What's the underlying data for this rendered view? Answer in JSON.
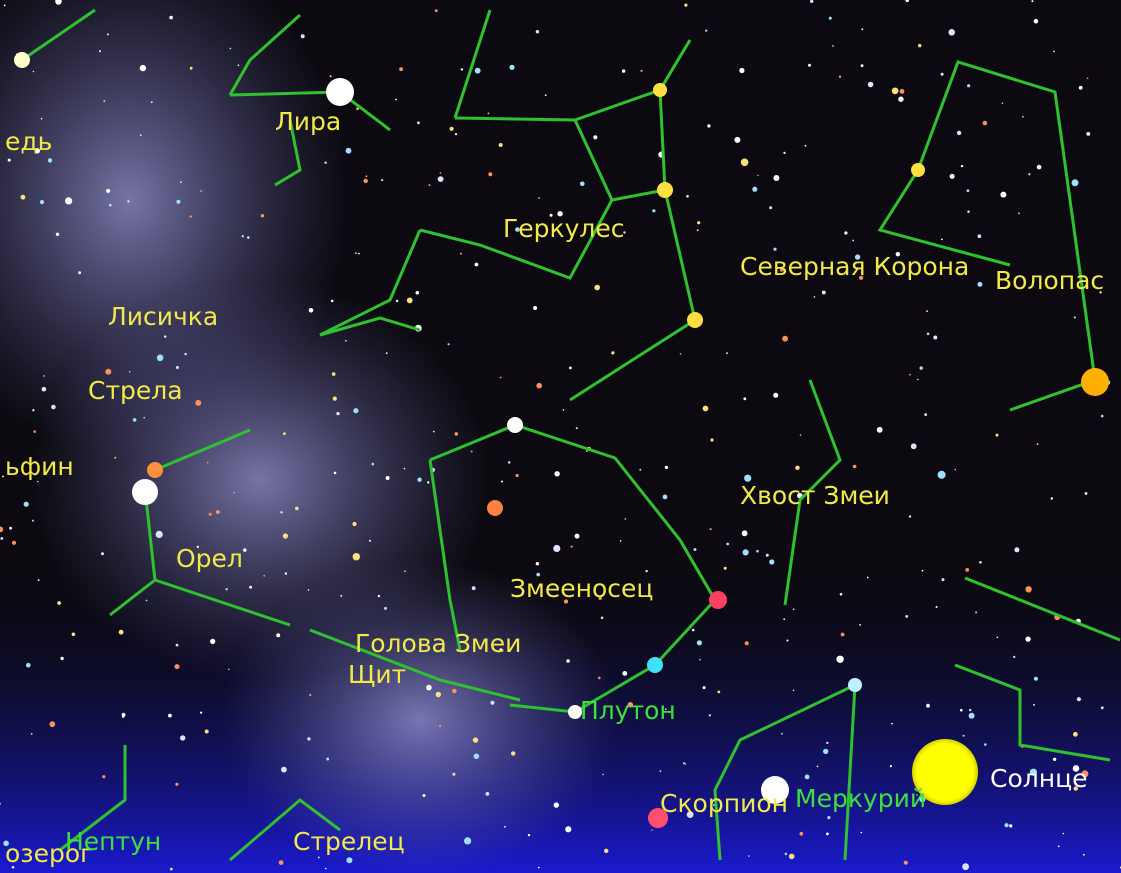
{
  "constellations": [
    "едь",
    "Лира",
    "Геркулес",
    "Северная Корона",
    "Волопас",
    "Лисичка",
    "Стрела",
    "ьфин",
    "Орел",
    "Змееносец",
    "Голова Змеи",
    "Щит",
    "Хвост Змеи",
    "Скорпион",
    "Стрелец",
    "озерог"
  ],
  "planets": [
    "Плутон",
    "Меркурий",
    "Нептун"
  ],
  "sun": "Солнце"
}
